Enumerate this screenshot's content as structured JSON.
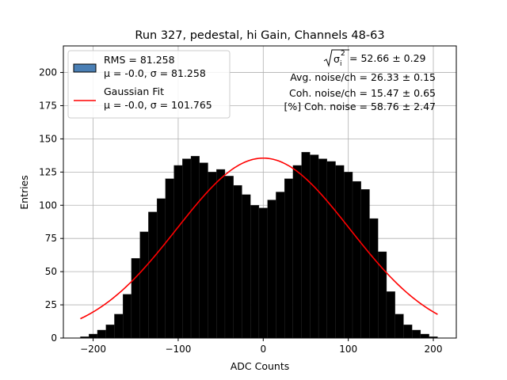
{
  "chart_data": {
    "type": "bar",
    "title": "Run 327, pedestal, hi Gain, Channels 48-63",
    "xlabel": "ADC Counts",
    "ylabel": "Entries",
    "xlim": [
      -235,
      227
    ],
    "ylim": [
      0,
      220
    ],
    "xticks": [
      -200,
      -100,
      0,
      100,
      200
    ],
    "yticks": [
      0,
      25,
      50,
      75,
      100,
      125,
      150,
      175,
      200
    ],
    "xtick_labels": [
      "−200",
      "−100",
      "0",
      "100",
      "200"
    ],
    "ytick_labels": [
      "0",
      "25",
      "50",
      "75",
      "100",
      "125",
      "150",
      "175",
      "200"
    ],
    "grid": true,
    "legend_position": "upper left",
    "series": [
      {
        "name": "RMS = 81.258",
        "name_line2": "μ = -0.0, σ = 81.258",
        "kind": "histogram",
        "color": "#000000",
        "legend_patch_color": "#4a7fb5",
        "bin_centers": [
          -210,
          -200,
          -190,
          -180,
          -170,
          -160,
          -150,
          -140,
          -130,
          -120,
          -110,
          -100,
          -90,
          -80,
          -70,
          -60,
          -50,
          -40,
          -30,
          -20,
          -10,
          0,
          10,
          20,
          30,
          40,
          50,
          60,
          70,
          80,
          90,
          100,
          110,
          120,
          130,
          140,
          150,
          160,
          170,
          180,
          190,
          200
        ],
        "values": [
          1,
          3,
          6,
          10,
          18,
          33,
          60,
          80,
          95,
          105,
          120,
          130,
          135,
          137,
          132,
          125,
          127,
          122,
          115,
          108,
          100,
          98,
          104,
          110,
          120,
          130,
          140,
          138,
          135,
          133,
          130,
          125,
          118,
          112,
          90,
          65,
          35,
          18,
          10,
          6,
          3,
          1
        ]
      },
      {
        "name": "Gaussian Fit",
        "name_line2": "μ = -0.0, σ = 101.765",
        "kind": "line",
        "color": "#ff0000",
        "mu": 0,
        "sigma": 101.765,
        "amplitude": 135.5,
        "x_range": [
          -215,
          205
        ]
      }
    ],
    "annotations": [
      {
        "prefix": "σ",
        "suffix": " = 52.66 ± 0.29"
      },
      {
        "text": "Avg. noise/ch = 26.33 ± 0.15"
      },
      {
        "text": "Coh. noise/ch = 15.47 ± 0.65"
      },
      {
        "text": "[%] Coh. noise = 58.76 ± 2.47"
      }
    ]
  }
}
